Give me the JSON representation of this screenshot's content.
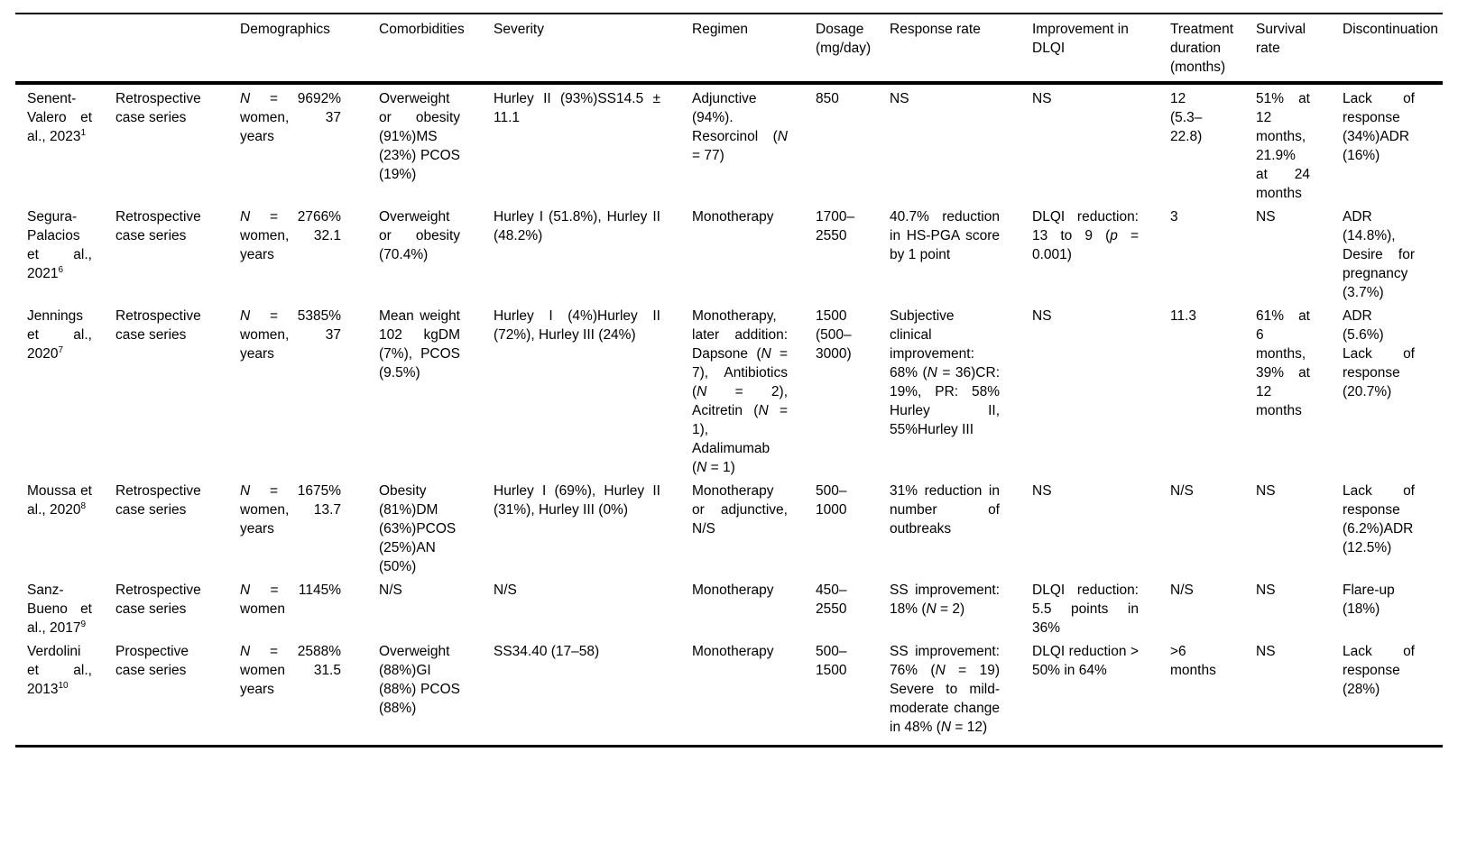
{
  "colors": {
    "text": "#000000",
    "background": "#ffffff",
    "rule": "#000000"
  },
  "table": {
    "columns": [
      "",
      "",
      "Demographics",
      "Comorbidities",
      "Severity",
      "Regimen",
      "Dosage (mg/day)",
      "Response rate",
      "Improvement in DLQI",
      "Treatment duration (months)",
      "Survival rate",
      "Discontinuation"
    ],
    "rows": [
      {
        "study": "Senent-Valero et al., 2023",
        "ref": "1",
        "design": "Retrospective case series",
        "demographics": "N = 9692% women, 37 years",
        "comorbidities": "Overweight or obesity (91%)MS (23%) PCOS (19%)",
        "severity": "Hurley II (93%)SS14.5 ± 11.1",
        "regimen": "Adjunctive (94%). Resorcinol (N = 77)",
        "dosage": "850",
        "response": "NS",
        "dlqi": "NS",
        "duration": "12 (5.3–22.8)",
        "survival": "51% at 12 months, 21.9% at 24 months",
        "discontinuation": "Lack of response (34%)ADR (16%)"
      },
      {
        "study": "Segura-Palacios et al., 2021",
        "ref": "6",
        "design": "Retrospective case series",
        "demographics": "N = 2766% women, 32.1 years",
        "comorbidities": "Overweight or obesity (70.4%)",
        "severity": "Hurley I (51.8%), Hurley II (48.2%)",
        "regimen": "Monotherapy",
        "dosage": "1700–2550",
        "response": "40.7% reduction in HS-PGA score by 1 point",
        "dlqi": "DLQI reduction: 13 to 9 (p = 0.001)",
        "duration": "3",
        "survival": "NS",
        "discontinuation": "ADR (14.8%), Desire for pregnancy (3.7%)"
      },
      {
        "study": "Jennings et al., 2020",
        "ref": "7",
        "design": "Retrospective case series",
        "demographics": "N = 5385% women, 37 years",
        "comorbidities": "Mean weight 102 kgDM (7%), PCOS (9.5%)",
        "severity": "Hurley I (4%)Hurley II (72%), Hurley III (24%)",
        "regimen": "Monotherapy, later addition: Dapsone (N = 7), Antibiotics (N = 2), Acitretin (N = 1), Adalimumab (N = 1)",
        "dosage": "1500 (500–3000)",
        "response": "Subjective clinical improvement: 68% (N = 36)CR: 19%, PR: 58% Hurley II, 55%Hurley III",
        "dlqi": "NS",
        "duration": "11.3",
        "survival": "61% at 6 months, 39% at 12 months",
        "discontinuation": "ADR (5.6%) Lack of response (20.7%)"
      },
      {
        "study": "Moussa et al., 2020",
        "ref": "8",
        "design": "Retrospective case series",
        "demographics": "N = 1675% women, 13.7 years",
        "comorbidities": "Obesity (81%)DM (63%)PCOS (25%)AN (50%)",
        "severity": "Hurley I (69%), Hurley II (31%), Hurley III (0%)",
        "regimen": "Monotherapy or adjunctive, N/S",
        "dosage": "500–1000",
        "response": "31% reduction in number of outbreaks",
        "dlqi": "NS",
        "duration": "N/S",
        "survival": "NS",
        "discontinuation": "Lack of response (6.2%)ADR (12.5%)"
      },
      {
        "study": "Sanz-Bueno et al., 2017",
        "ref": "9",
        "design": "Retrospective case series",
        "demographics": "N = 1145% women",
        "comorbidities": "N/S",
        "severity": "N/S",
        "regimen": "Monotherapy",
        "dosage": "450–2550",
        "response": "SS improvement: 18% (N = 2)",
        "dlqi": "DLQI reduction: 5.5 points in 36%",
        "duration": "N/S",
        "survival": "NS",
        "discontinuation": "Flare-up (18%)"
      },
      {
        "study": "Verdolini et al., 2013",
        "ref": "10",
        "design": "Prospective case series",
        "demographics": "N = 2588% women 31.5 years",
        "comorbidities": "Overweight (88%)GI (88%) PCOS (88%)",
        "severity": "SS34.40 (17–58)",
        "regimen": "Monotherapy",
        "dosage": "500–1500",
        "response": "SS improvement: 76% (N = 19) Severe to mild-moderate change in 48% (N = 12)",
        "dlqi": "DLQI reduction > 50% in 64%",
        "duration": ">6 months",
        "survival": "NS",
        "discontinuation": "Lack of response (28%)"
      }
    ]
  }
}
